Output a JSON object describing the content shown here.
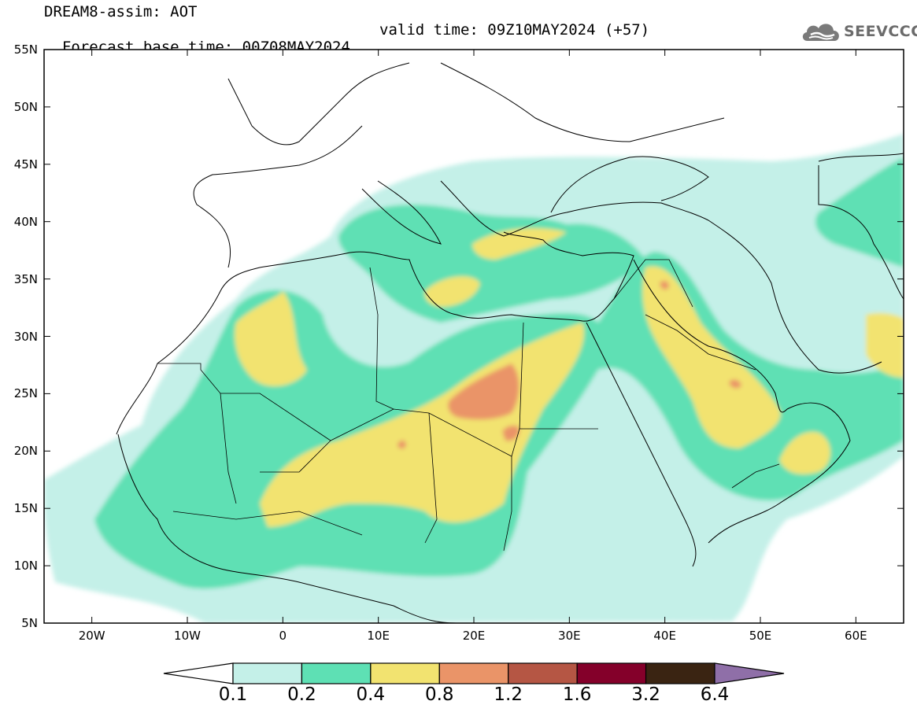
{
  "title": {
    "line1": "DREAM8-assim: AOT",
    "line2": "Forecast base time: 00Z08MAY2024",
    "valid": "valid time: 09Z10MAY2024 (+57)"
  },
  "logo": {
    "text": "SEEVCCC",
    "icon": "cloud-icon"
  },
  "axes": {
    "lat_labels": [
      "55N",
      "50N",
      "45N",
      "40N",
      "35N",
      "30N",
      "25N",
      "20N",
      "15N",
      "10N",
      "5N"
    ],
    "lon_labels": [
      "20W",
      "10W",
      "0",
      "10E",
      "20E",
      "30E",
      "40E",
      "50E",
      "60E"
    ],
    "lat_range": [
      5,
      55
    ],
    "lon_range": [
      -25,
      65
    ]
  },
  "colorbar": {
    "labels": [
      "0.1",
      "0.2",
      "0.4",
      "0.8",
      "1.2",
      "1.6",
      "3.2",
      "6.4"
    ],
    "colors": [
      "#ffffff",
      "#c4f0e8",
      "#5ee0b4",
      "#f2e370",
      "#ea9468",
      "#b55644",
      "#84002a",
      "#3a2412",
      "#8f6fa8"
    ]
  }
}
